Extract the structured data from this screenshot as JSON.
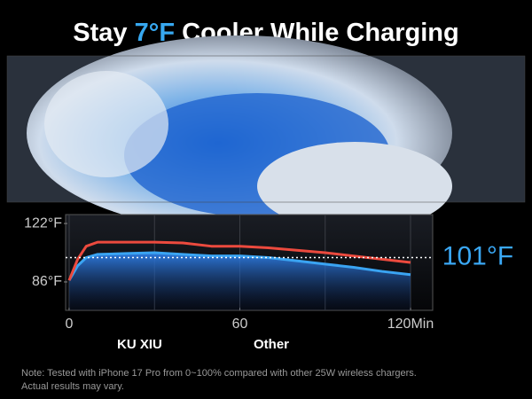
{
  "chart_data": {
    "type": "line",
    "title": {
      "before": "Stay",
      "highlight": "7°F",
      "after": "Cooler While Charging"
    },
    "x": [
      0,
      3,
      6,
      10,
      20,
      30,
      40,
      50,
      60,
      70,
      80,
      90,
      100,
      110,
      120
    ],
    "series": [
      {
        "name": "KU XIU",
        "color": "#3aa4f2",
        "values": [
          87,
          96,
          101,
          103,
          103.5,
          104,
          103,
          102,
          102,
          101,
          99,
          97,
          95,
          92.5,
          90.5
        ]
      },
      {
        "name": "Other",
        "color": "#ec4a3e",
        "values": [
          87,
          100,
          108,
          110.5,
          110.5,
          110.5,
          110,
          108,
          108,
          107,
          105.5,
          104,
          102,
          100,
          98
        ]
      }
    ],
    "xlim": [
      0,
      120
    ],
    "xticks": [
      0,
      60,
      {
        "value": 120,
        "label": "120Min"
      }
    ],
    "xgrid": [
      0,
      30,
      60,
      90,
      120
    ],
    "ylim": [
      68.5,
      127.5
    ],
    "yticks": [
      {
        "value": 122,
        "label": "122°F"
      },
      {
        "value": 86,
        "label": "86°F"
      }
    ],
    "reference_line": {
      "value": 101,
      "label": "101°F"
    },
    "note": [
      "Note: Tested with iPhone 17 Pro from 0~100% compared with other 25W wireless chargers.",
      "Actual results may vary."
    ]
  }
}
